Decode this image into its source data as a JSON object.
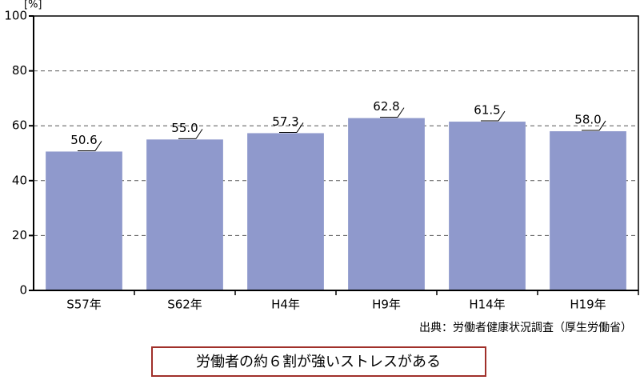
{
  "chart_data": {
    "type": "bar",
    "y_label": "[%]",
    "categories": [
      "S57年",
      "S62年",
      "H4年",
      "H9年",
      "H14年",
      "H19年"
    ],
    "values": [
      50.6,
      55.0,
      57.3,
      62.8,
      61.5,
      58.0
    ],
    "value_labels": [
      "50.6",
      "55.0",
      "57.3",
      "62.8",
      "61.5",
      "58.0"
    ],
    "color": "#8f99cc",
    "ylim": [
      0,
      100
    ],
    "yticks": [
      0,
      20,
      40,
      60,
      80,
      100
    ],
    "grid": true,
    "source": "出典：労働者健康状況調査（厚生労働省）",
    "caption": "労働者の約６割が強いストレスがある"
  }
}
